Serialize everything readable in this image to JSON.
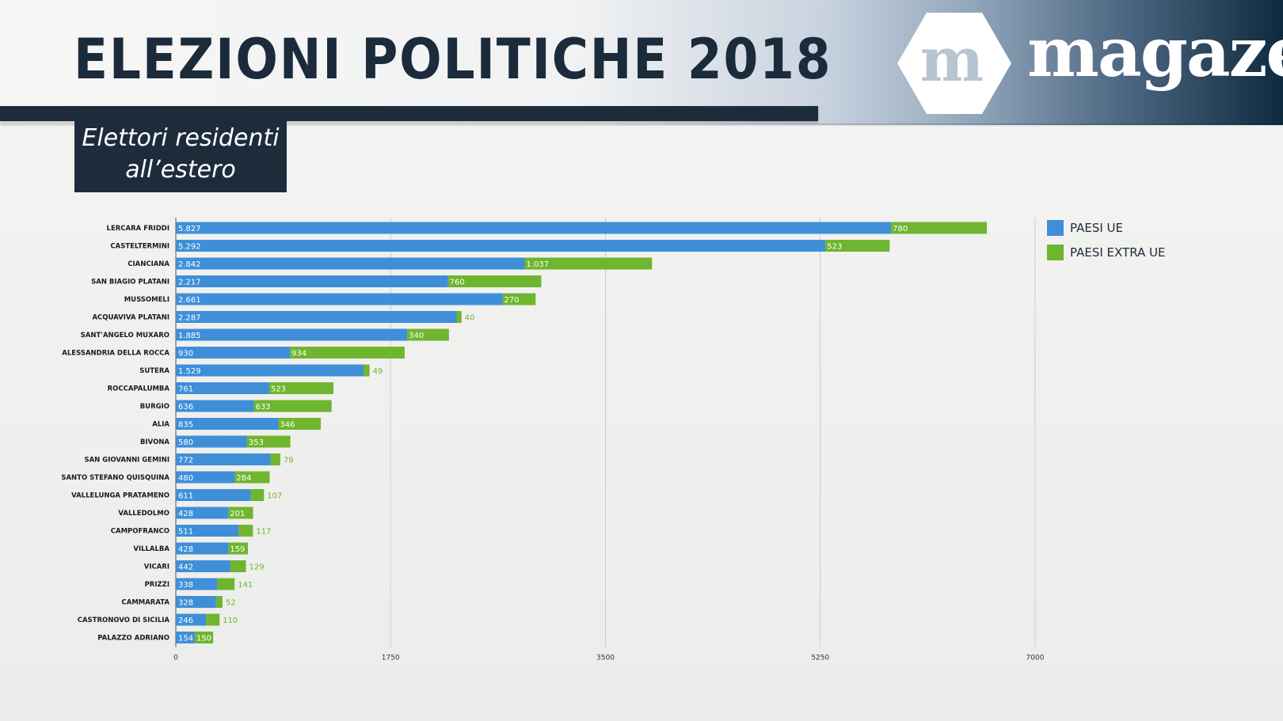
{
  "header": {
    "title": "ELEZIONI POLITICHE 2018",
    "subtitle_line1": "Elettori residenti",
    "subtitle_line2": "all’estero"
  },
  "brand": {
    "logo_letter": "m",
    "name": "magaze"
  },
  "colors": {
    "paesi_ue": "#3e8fd8",
    "paesi_extra_ue": "#6fb52f",
    "navy": "#1d2c3b"
  },
  "chart_data": {
    "type": "bar",
    "orientation": "horizontal",
    "stacked": true,
    "categories": [
      "LERCARA FRIDDI",
      "CASTELTERMINI",
      "CIANCIANA",
      "SAN BIAGIO PLATANI",
      "MUSSOMELI",
      "ACQUAVIVA PLATANI",
      "SANT'ANGELO MUXARO",
      "ALESSANDRIA DELLA ROCCA",
      "SUTERA",
      "ROCCAPALUMBA",
      "BURGIO",
      "ALIA",
      "BIVONA",
      "SAN GIOVANNI GEMINI",
      "SANTO STEFANO QUISQUINA",
      "VALLELUNGA PRATAMENO",
      "VALLEDOLMO",
      "CAMPOFRANCO",
      "VILLALBA",
      "VICARI",
      "PRIZZI",
      "CAMMARATA",
      "CASTRONOVO DI SICILIA",
      "PALAZZO ADRIANO"
    ],
    "series": [
      {
        "name": "PAESI UE",
        "values": [
          5827,
          5292,
          2842,
          2217,
          2661,
          2287,
          1885,
          930,
          1529,
          761,
          636,
          835,
          580,
          772,
          480,
          611,
          428,
          511,
          428,
          442,
          338,
          328,
          246,
          154
        ],
        "labels": [
          "5.827",
          "5.292",
          "2.842",
          "2.217",
          "2.661",
          "2.287",
          "1.885",
          "930",
          "1.529",
          "761",
          "636",
          "835",
          "580",
          "772",
          "480",
          "611",
          "428",
          "511",
          "428",
          "442",
          "338",
          "328",
          "246",
          "154"
        ]
      },
      {
        "name": "PAESI EXTRA UE",
        "values": [
          780,
          523,
          1037,
          760,
          270,
          40,
          340,
          934,
          49,
          523,
          633,
          346,
          353,
          79,
          284,
          107,
          201,
          117,
          159,
          129,
          141,
          52,
          110,
          150
        ],
        "labels": [
          "780",
          "523",
          "1.037",
          "760",
          "270",
          "40",
          "340",
          "934",
          "49",
          "523",
          "633",
          "346",
          "353",
          "79",
          "284",
          "107",
          "201",
          "117",
          "159",
          "129",
          "141",
          "52",
          "110",
          "150"
        ]
      }
    ],
    "xlim": [
      0,
      7000
    ],
    "xticks": [
      "0",
      "1750",
      "3500",
      "5250",
      "7000"
    ],
    "grid": true,
    "legend_position": "right"
  }
}
